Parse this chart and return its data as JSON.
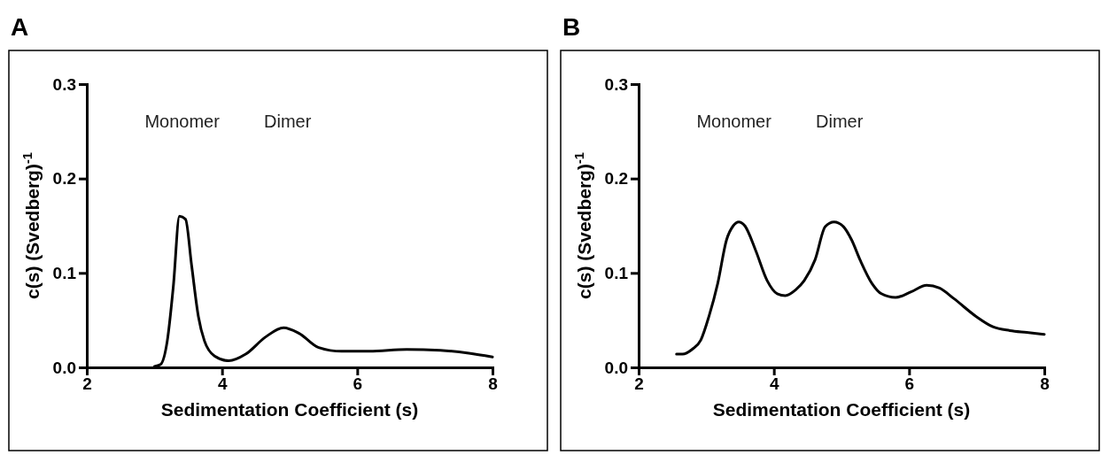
{
  "chart_data": [
    {
      "type": "line",
      "title": "A",
      "xlabel": "Sedimentation Coefficient (s)",
      "ylabel": "c(s) (Svedberg)$^{-1}$",
      "xlim": [
        2,
        8
      ],
      "ylim": [
        0,
        0.3
      ],
      "xticks": [
        2,
        4,
        6,
        8
      ],
      "yticks": [
        {
          "value": 0,
          "label": "0.0"
        },
        {
          "value": 0.1,
          "label": "0.1"
        },
        {
          "value": 0.2,
          "label": "0.2"
        },
        {
          "value": 0.3,
          "label": "0.3"
        }
      ],
      "grid": false,
      "marker": "none",
      "line_style": "solid",
      "annotations": [
        "Monomer",
        "Dimer"
      ],
      "series": [
        {
          "color": "#000000",
          "x": [
            3.0,
            3.09,
            3.19,
            3.28,
            3.37,
            3.46,
            3.55,
            3.65,
            3.74,
            3.89,
            4.1,
            4.35,
            4.64,
            4.91,
            5.14,
            5.43,
            5.77,
            6.18,
            6.73,
            7.23,
            7.65,
            8.0
          ],
          "values": [
            0.001,
            0.003,
            0.028,
            0.086,
            0.16,
            0.157,
            0.108,
            0.054,
            0.028,
            0.012,
            0.007,
            0.014,
            0.032,
            0.042,
            0.036,
            0.021,
            0.017,
            0.017,
            0.019,
            0.018,
            0.015,
            0.011
          ]
        }
      ]
    },
    {
      "type": "line",
      "title": "B",
      "xlabel": "Sedimentation Coefficient (s)",
      "ylabel": "c(s) (Svedberg)$^{-1}$",
      "xlim": [
        2,
        8
      ],
      "ylim": [
        0,
        0.3
      ],
      "xticks": [
        2,
        4,
        6,
        8
      ],
      "yticks": [
        {
          "value": 0,
          "label": "0.0"
        },
        {
          "value": 0.1,
          "label": "0.1"
        },
        {
          "value": 0.2,
          "label": "0.2"
        },
        {
          "value": 0.3,
          "label": "0.3"
        }
      ],
      "grid": false,
      "marker": "none",
      "line_style": "solid",
      "annotations": [
        "Monomer",
        "Dimer"
      ],
      "series": [
        {
          "color": "#000000",
          "x": [
            2.56,
            2.65,
            2.79,
            2.92,
            3.04,
            3.17,
            3.3,
            3.4,
            3.48,
            3.57,
            3.73,
            3.9,
            4.05,
            4.17,
            4.32,
            4.45,
            4.61,
            4.76,
            4.89,
            5.03,
            5.15,
            5.28,
            5.45,
            5.59,
            5.8,
            6.03,
            6.26,
            6.45,
            6.66,
            6.99,
            7.24,
            7.49,
            7.74,
            8.0
          ],
          "values": [
            0.014,
            0.014,
            0.019,
            0.029,
            0.054,
            0.089,
            0.135,
            0.15,
            0.154,
            0.15,
            0.124,
            0.092,
            0.078,
            0.076,
            0.082,
            0.092,
            0.114,
            0.149,
            0.154,
            0.149,
            0.135,
            0.113,
            0.089,
            0.078,
            0.074,
            0.08,
            0.087,
            0.084,
            0.073,
            0.054,
            0.043,
            0.039,
            0.037,
            0.035
          ]
        }
      ]
    }
  ]
}
